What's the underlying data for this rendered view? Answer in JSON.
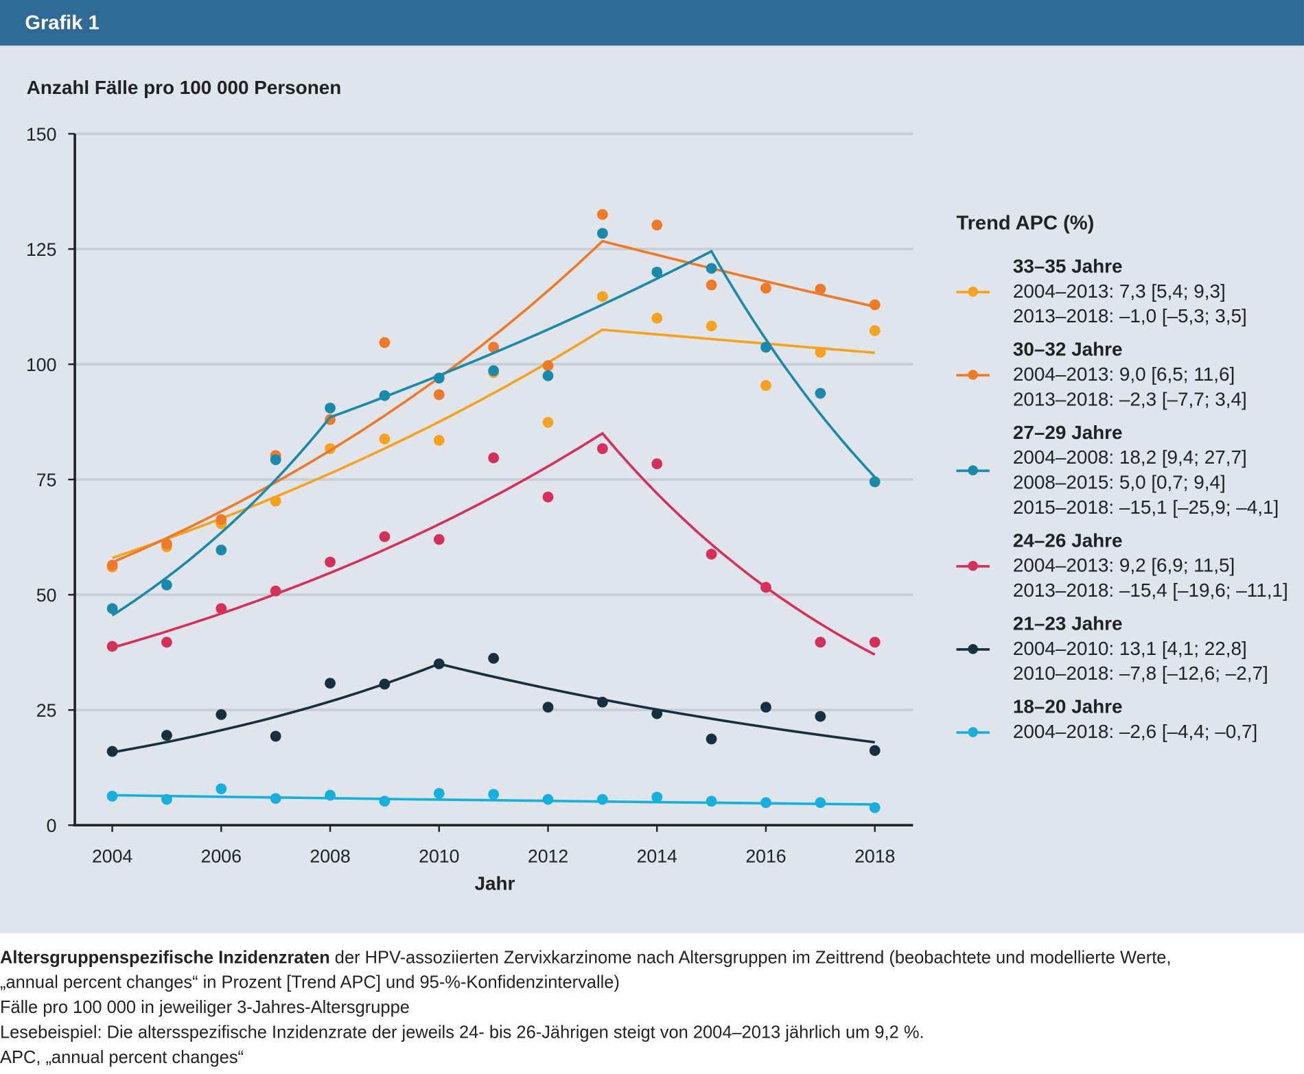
{
  "header": {
    "title": "Grafik 1"
  },
  "chart_data": {
    "type": "scatter+line",
    "ylabel": "Anzahl Fälle pro 100 000 Personen",
    "xlabel": "Jahr",
    "xlim": [
      2004,
      2018
    ],
    "ylim": [
      0,
      150
    ],
    "xticks": [
      "2004",
      "2006",
      "2008",
      "2010",
      "2012",
      "2014",
      "2016",
      "2018"
    ],
    "yticks": [
      "0",
      "25",
      "50",
      "75",
      "100",
      "125",
      "150"
    ],
    "grid": "horizontal",
    "legend_title": "Trend APC (%)",
    "legend_placement": "right",
    "x": [
      2004,
      2005,
      2006,
      2007,
      2008,
      2009,
      2010,
      2011,
      2012,
      2013,
      2014,
      2015,
      2016,
      2017,
      2018
    ],
    "series": [
      {
        "name": "33–35 Jahre",
        "color": "#f5a21f",
        "apc": [
          "2004–2013: 7,3 [5,4; 9,3]",
          "2013–2018: –1,0 [–5,3; 3,5]"
        ],
        "observed": [
          56,
          60.4,
          65.4,
          70.3,
          81.7,
          83.8,
          83.5,
          98.2,
          87.4,
          114.7,
          110,
          108.3,
          95.4,
          102.6,
          107.3
        ],
        "trend_joinpoints": [
          [
            2004,
            58
          ],
          [
            2013,
            107.5
          ],
          [
            2018,
            102.5
          ]
        ]
      },
      {
        "name": "30–32 Jahre",
        "color": "#ee7a28",
        "apc": [
          "2004–2013: 9,0 [6,5; 11,6]",
          "2013–2018: –2,3 [–7,7; 3,4]"
        ],
        "observed": [
          56.4,
          61,
          66.3,
          80.2,
          88,
          104.7,
          93.4,
          103.7,
          99.7,
          132.5,
          130.2,
          117.2,
          116.5,
          116.3,
          112.9
        ],
        "trend_joinpoints": [
          [
            2004,
            57
          ],
          [
            2013,
            126.7
          ],
          [
            2018,
            112.5
          ]
        ]
      },
      {
        "name": "27–29 Jahre",
        "color": "#1a8aac",
        "apc": [
          "2004–2008: 18,2 [9,4; 27,7]",
          "2008–2015: 5,0 [0,7; 9,4]",
          "2015–2018: –15,1 [–25,9; –4,1]"
        ],
        "observed": [
          47,
          52.1,
          59.7,
          79.3,
          90.5,
          93.2,
          97,
          98.6,
          97.5,
          128.4,
          120,
          120.8,
          103.7,
          93.7,
          74.5
        ],
        "trend_joinpoints": [
          [
            2004,
            45.5
          ],
          [
            2008,
            88.5
          ],
          [
            2015,
            124.5
          ],
          [
            2018,
            75.5
          ]
        ]
      },
      {
        "name": "24–26 Jahre",
        "color": "#d5305a",
        "apc": [
          "2004–2013: 9,2 [6,9; 11,5]",
          "2013–2018: –15,4 [–19,6; –11,1]"
        ],
        "observed": [
          38.8,
          39.7,
          47,
          50.8,
          57.1,
          62.6,
          62,
          79.7,
          71.2,
          81.7,
          78.4,
          58.8,
          51.6,
          39.7,
          39.7
        ],
        "trend_joinpoints": [
          [
            2004,
            38.5
          ],
          [
            2013,
            85
          ],
          [
            2018,
            37
          ]
        ]
      },
      {
        "name": "21–23 Jahre",
        "color": "#17303f",
        "apc": [
          "2004–2010: 13,1 [4,1; 22,8]",
          "2010–2018: –7,8 [–12,6; –2,7]"
        ],
        "observed": [
          16,
          19.5,
          24,
          19.3,
          30.8,
          30.6,
          35,
          36.2,
          25.6,
          26.7,
          24.2,
          18.7,
          25.6,
          23.6,
          16.2
        ],
        "trend_joinpoints": [
          [
            2004,
            15.8
          ],
          [
            2010,
            35
          ],
          [
            2018,
            18
          ]
        ]
      },
      {
        "name": "18–20 Jahre",
        "color": "#17b0dd",
        "apc": [
          "2004–2018: –2,6 [–4,4; –0,7]"
        ],
        "observed": [
          6.3,
          5.6,
          7.9,
          5.8,
          6.5,
          5.2,
          6.9,
          6.7,
          5.6,
          5.6,
          6.1,
          5.2,
          4.9,
          4.9,
          3.8
        ],
        "trend_joinpoints": [
          [
            2004,
            6.5
          ],
          [
            2018,
            4.5
          ]
        ]
      }
    ]
  },
  "caption": {
    "bold_lead": "Altersgruppenspezifische Inzidenzraten",
    "line1": " der HPV-assoziierten Zervixkarzinome nach Altersgruppen im Zeittrend (beobachtete und modellierte Werte,",
    "line2": "„annual percent changes“ in Prozent [Trend APC] und 95-%-Konfidenzintervalle)",
    "line3": "Fälle pro 100 000 in jeweiliger 3-Jahres-Altersgruppe",
    "line4": "Lesebeispiel: Die altersspezifische Inzidenzrate der jeweils 24- bis 26-Jährigen steigt von 2004–2013 jährlich um 9,2 %.",
    "line5": "APC, „annual percent changes“"
  }
}
